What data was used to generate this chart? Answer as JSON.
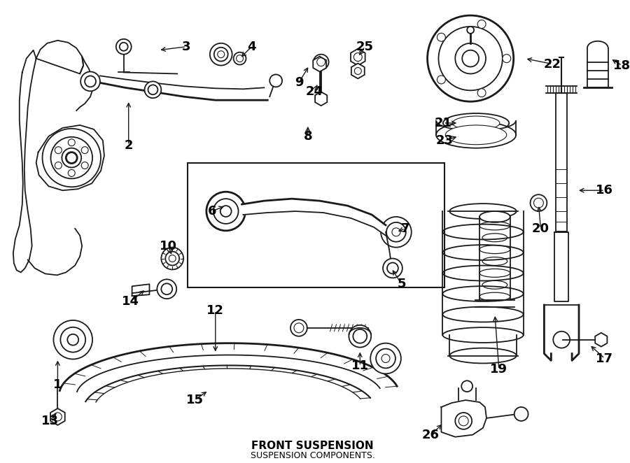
{
  "title": "FRONT SUSPENSION",
  "subtitle": "SUSPENSION COMPONENTS.",
  "bg_color": "#ffffff",
  "line_color": "#1a1a1a",
  "label_color": "#000000",
  "label_fontsize": 13,
  "title_fontsize": 11
}
